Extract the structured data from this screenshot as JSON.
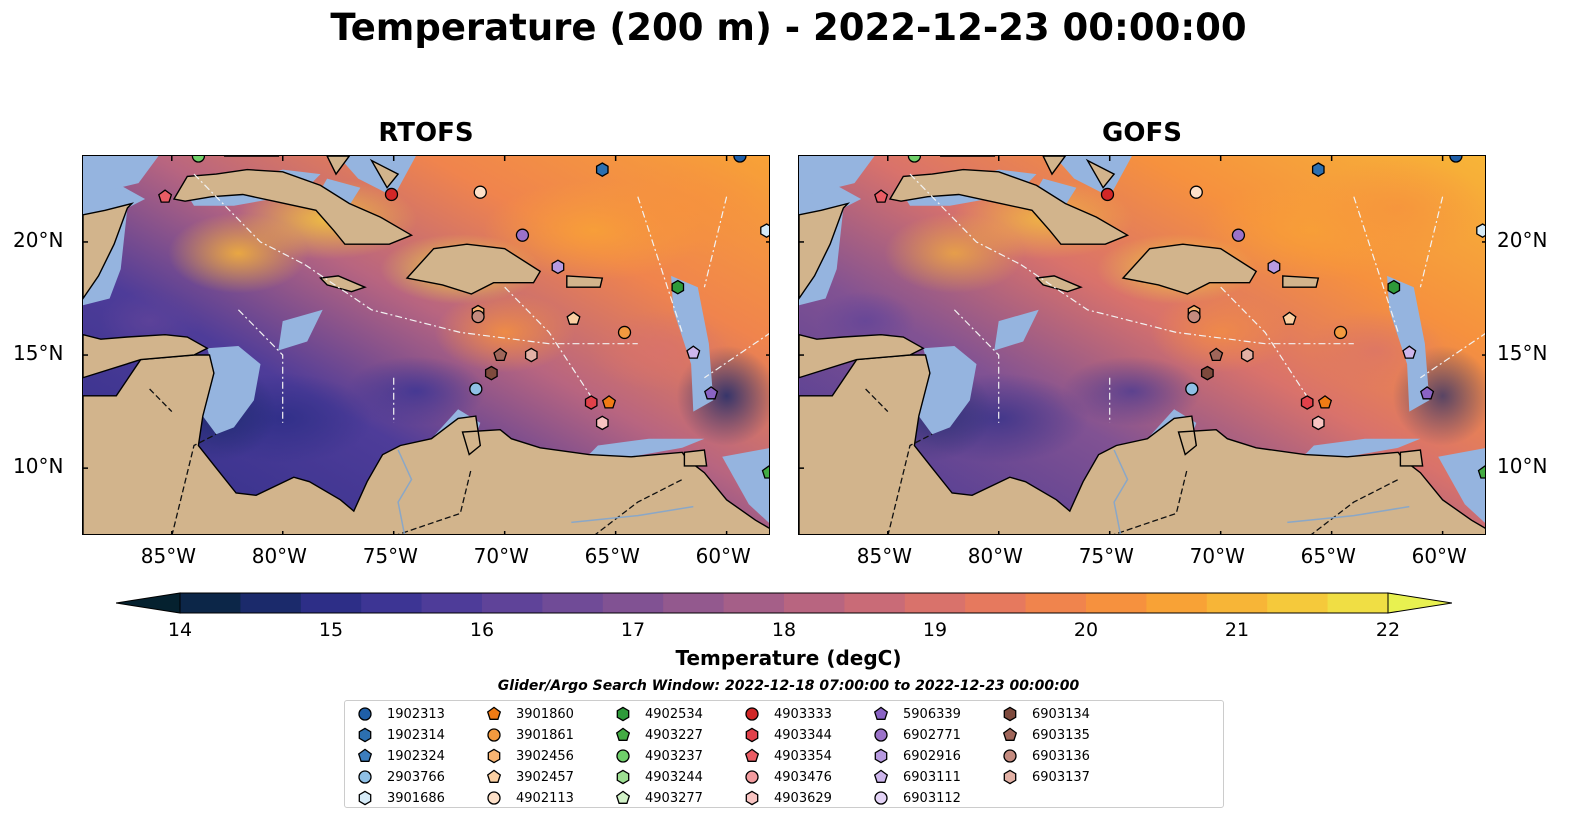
{
  "title": "Temperature (200 m) - 2022-12-23 00:00:00",
  "panels": [
    {
      "title": "RTOFS"
    },
    {
      "title": "GOFS"
    }
  ],
  "map_extent": {
    "lon": [
      -89.0,
      -58.0
    ],
    "lat": [
      7.0,
      23.8
    ]
  },
  "lon_ticks": [
    {
      "value": -85,
      "label": "85°W"
    },
    {
      "value": -80,
      "label": "80°W"
    },
    {
      "value": -75,
      "label": "75°W"
    },
    {
      "value": -70,
      "label": "70°W"
    },
    {
      "value": -65,
      "label": "65°W"
    },
    {
      "value": -60,
      "label": "60°W"
    }
  ],
  "lat_ticks": [
    {
      "value": 20,
      "label": "20°N"
    },
    {
      "value": 15,
      "label": "15°N"
    },
    {
      "value": 10,
      "label": "10°N"
    }
  ],
  "colorbar": {
    "title": "Temperature (degC)",
    "min": 14,
    "max": 22,
    "ticks": [
      "14",
      "15",
      "16",
      "17",
      "18",
      "19",
      "20",
      "21",
      "22"
    ],
    "colors": [
      "#05212f",
      "#0c2648",
      "#1b2a6b",
      "#2d2e87",
      "#3d3594",
      "#4e3c99",
      "#5f4399",
      "#704b97",
      "#815293",
      "#93598e",
      "#a55f88",
      "#b86580",
      "#c96b77",
      "#d9726b",
      "#e6795e",
      "#f0844d",
      "#f6913e",
      "#f8a236",
      "#f7b537",
      "#f5c93b",
      "#f0de44",
      "#e8f150"
    ],
    "land_color": "#d2b48c",
    "shallow_color": "#95b4df"
  },
  "legend_title": "Glider/Argo Search Window: 2022-12-18 07:00:00 to 2022-12-23 00:00:00",
  "legend": [
    {
      "id": "1902313",
      "color": "#1f5fa8",
      "marker": "circle"
    },
    {
      "id": "1902314",
      "color": "#2c6fb0",
      "marker": "hexagon"
    },
    {
      "id": "1902324",
      "color": "#3c7dbd",
      "marker": "pentagon"
    },
    {
      "id": "2903766",
      "color": "#8fc0e6",
      "marker": "circle"
    },
    {
      "id": "3901686",
      "color": "#d6ebf8",
      "marker": "hexagon"
    },
    {
      "id": "3901860",
      "color": "#f07b14",
      "marker": "pentagon"
    },
    {
      "id": "3901861",
      "color": "#f39a3f",
      "marker": "circle"
    },
    {
      "id": "3902456",
      "color": "#f7b472",
      "marker": "hexagon"
    },
    {
      "id": "3902457",
      "color": "#fbd0a3",
      "marker": "pentagon"
    },
    {
      "id": "4902113",
      "color": "#fde0c8",
      "marker": "circle"
    },
    {
      "id": "4902534",
      "color": "#2e9a3a",
      "marker": "hexagon"
    },
    {
      "id": "4903227",
      "color": "#43ab43",
      "marker": "pentagon"
    },
    {
      "id": "4903237",
      "color": "#6fcf6a",
      "marker": "circle"
    },
    {
      "id": "4903244",
      "color": "#9ddf92",
      "marker": "hexagon"
    },
    {
      "id": "4903277",
      "color": "#d2f2c8",
      "marker": "pentagon"
    },
    {
      "id": "4903333",
      "color": "#d12727",
      "marker": "circle"
    },
    {
      "id": "4903344",
      "color": "#e0414a",
      "marker": "hexagon"
    },
    {
      "id": "4903354",
      "color": "#ea5c64",
      "marker": "pentagon"
    },
    {
      "id": "4903476",
      "color": "#f29b9e",
      "marker": "circle"
    },
    {
      "id": "4903629",
      "color": "#f8c4c2",
      "marker": "hexagon"
    },
    {
      "id": "5906339",
      "color": "#8a63c4",
      "marker": "pentagon"
    },
    {
      "id": "6902771",
      "color": "#9b72c9",
      "marker": "circle"
    },
    {
      "id": "6902916",
      "color": "#b79ae0",
      "marker": "hexagon"
    },
    {
      "id": "6903111",
      "color": "#cdb6ec",
      "marker": "pentagon"
    },
    {
      "id": "6903112",
      "color": "#e3d3f6",
      "marker": "circle"
    },
    {
      "id": "6903134",
      "color": "#7e4a3d",
      "marker": "hexagon"
    },
    {
      "id": "6903135",
      "color": "#a0665a",
      "marker": "pentagon"
    },
    {
      "id": "6903136",
      "color": "#c48b7f",
      "marker": "circle"
    },
    {
      "id": "6903137",
      "color": "#e2b1a5",
      "marker": "hexagon"
    }
  ],
  "floats": [
    {
      "id": "4903354",
      "lon": -85.3,
      "lat": 22.0
    },
    {
      "id": "4903237",
      "lon": -83.8,
      "lat": 23.8
    },
    {
      "id": "4903333",
      "lon": -75.1,
      "lat": 22.1
    },
    {
      "id": "4902113",
      "lon": -71.1,
      "lat": 22.2
    },
    {
      "id": "1902314",
      "lon": -65.6,
      "lat": 23.2
    },
    {
      "id": "1902313",
      "lon": -59.4,
      "lat": 23.8
    },
    {
      "id": "3901686",
      "lon": -58.2,
      "lat": 20.5
    },
    {
      "id": "6902771",
      "lon": -69.2,
      "lat": 20.3
    },
    {
      "id": "6902916",
      "lon": -67.6,
      "lat": 18.9
    },
    {
      "id": "4902534",
      "lon": -62.2,
      "lat": 18.0
    },
    {
      "id": "3902456",
      "lon": -71.2,
      "lat": 16.9
    },
    {
      "id": "6903136",
      "lon": -71.2,
      "lat": 16.7
    },
    {
      "id": "3902457",
      "lon": -66.9,
      "lat": 16.6
    },
    {
      "id": "3901861",
      "lon": -64.6,
      "lat": 16.0
    },
    {
      "id": "6903135",
      "lon": -70.2,
      "lat": 15.0
    },
    {
      "id": "6903134",
      "lon": -70.6,
      "lat": 14.2
    },
    {
      "id": "6903137",
      "lon": -68.8,
      "lat": 15.0
    },
    {
      "id": "6903111",
      "lon": -61.5,
      "lat": 15.1
    },
    {
      "id": "2903766",
      "lon": -71.3,
      "lat": 13.5
    },
    {
      "id": "5906339",
      "lon": -60.7,
      "lat": 13.3
    },
    {
      "id": "4903344",
      "lon": -66.1,
      "lat": 12.9
    },
    {
      "id": "3901860",
      "lon": -65.3,
      "lat": 12.9
    },
    {
      "id": "4903629",
      "lon": -65.6,
      "lat": 12.0
    },
    {
      "id": "4903227",
      "lon": -58.1,
      "lat": 9.8
    }
  ]
}
